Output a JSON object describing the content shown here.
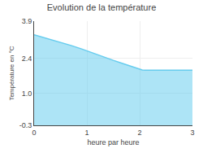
{
  "chart_data": {
    "type": "area",
    "title": "Evolution de la température",
    "xlabel": "heure par heure",
    "ylabel": "Température en °C",
    "color": "#66ccee",
    "x": [
      0,
      0.05,
      0.15,
      0.3,
      0.5,
      0.7,
      0.9,
      1.0,
      1.1,
      1.3,
      1.5,
      1.7,
      1.85,
      1.95,
      2.0,
      2.05,
      2.1,
      2.5,
      3.0
    ],
    "values": [
      3.35,
      3.32,
      3.27,
      3.18,
      3.05,
      2.92,
      2.78,
      2.7,
      2.62,
      2.48,
      2.32,
      2.18,
      2.07,
      2.02,
      1.98,
      1.93,
      1.92,
      1.92,
      1.92
    ],
    "xlim": [
      0,
      3
    ],
    "xticks": [
      0,
      1,
      2,
      3
    ],
    "ylim": [
      -0.3,
      3.9
    ],
    "yticks": [
      -0.3,
      {
        "value": 1.0,
        "label": "1.0"
      },
      2.4,
      3.9
    ],
    "grid": true
  }
}
